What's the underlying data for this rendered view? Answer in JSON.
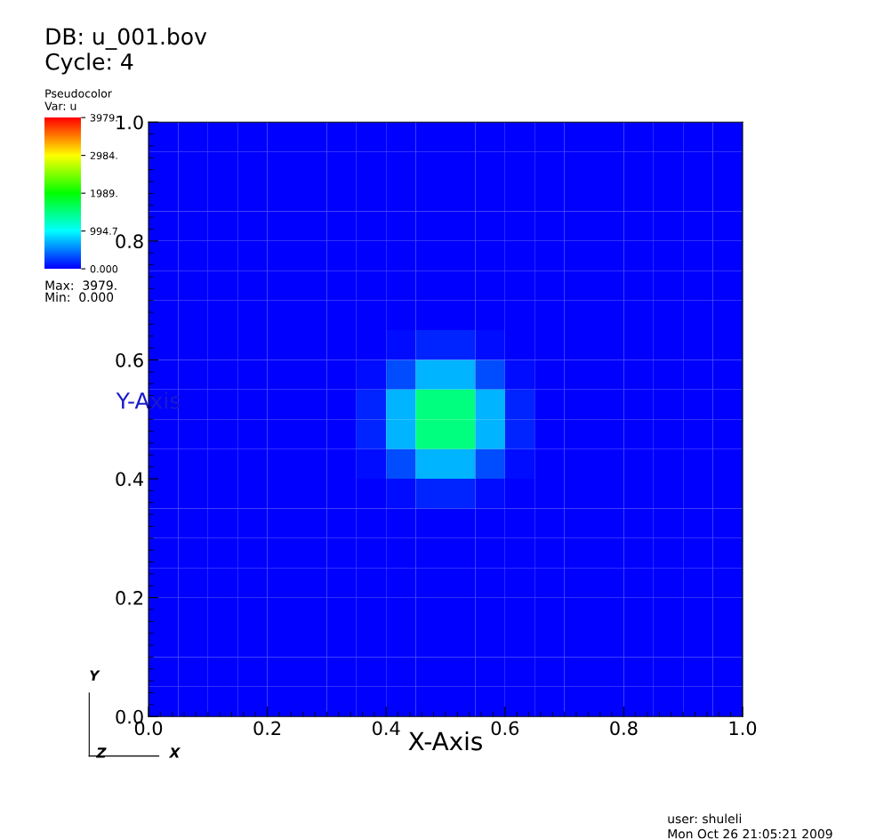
{
  "chart_data": {
    "type": "heatmap",
    "title": "DB: u_001.bov",
    "subtitle": "Cycle: 4",
    "xlabel": "X-Axis",
    "ylabel": "Y-Axis",
    "legend_title": "Pseudocolor",
    "clabel": "Var: u",
    "xlim": [
      0,
      1
    ],
    "ylim": [
      0,
      1
    ],
    "xticks": [
      {
        "value": 0,
        "label": "0.0"
      },
      {
        "value": 0.2,
        "label": "0.2"
      },
      {
        "value": 0.4,
        "label": "0.4"
      },
      {
        "value": 0.6,
        "label": "0.6"
      },
      {
        "value": 0.8,
        "label": "0.8"
      },
      {
        "value": 1,
        "label": "1.0"
      }
    ],
    "yticks": [
      {
        "value": 0,
        "label": "0.0"
      },
      {
        "value": 0.2,
        "label": "0.2"
      },
      {
        "value": 0.4,
        "label": "0.4"
      },
      {
        "value": 0.6,
        "label": "0.6"
      },
      {
        "value": 0.8,
        "label": "0.8"
      },
      {
        "value": 1,
        "label": "1.0"
      }
    ],
    "clim": [
      0,
      3979
    ],
    "cticks": [
      {
        "value": 0,
        "label": "0.000"
      },
      {
        "value": 994.7,
        "label": "994.7"
      },
      {
        "value": 1989,
        "label": "1989."
      },
      {
        "value": 2984,
        "label": "2984."
      },
      {
        "value": 3979,
        "label": "3979."
      }
    ],
    "cells": [
      [
        0,
        0,
        0,
        0,
        0,
        0,
        0,
        0,
        0,
        0,
        0,
        0,
        0,
        0,
        0,
        0,
        0,
        0,
        0,
        0
      ],
      [
        0,
        0,
        0,
        0,
        0,
        0,
        0,
        0,
        0,
        0,
        0,
        0,
        0,
        0,
        0,
        0,
        0,
        0,
        0,
        0
      ],
      [
        0,
        0,
        0,
        0,
        0,
        0,
        0,
        0,
        0,
        0,
        0,
        0,
        0,
        0,
        0,
        0,
        0,
        0,
        0,
        0
      ],
      [
        0,
        0,
        0,
        0,
        0,
        0,
        0,
        0,
        0,
        0,
        0,
        0,
        0,
        0,
        0,
        0,
        0,
        0,
        0,
        0
      ],
      [
        0,
        0,
        0,
        0,
        0,
        0,
        0,
        0,
        0,
        0,
        0,
        0,
        0,
        0,
        0,
        0,
        0,
        0,
        0,
        0
      ],
      [
        0,
        0,
        0,
        0,
        0,
        0,
        0,
        0,
        0,
        0,
        0,
        0,
        0,
        0,
        0,
        0,
        0,
        0,
        0,
        0
      ],
      [
        0,
        0,
        0,
        0,
        0,
        0,
        0,
        0,
        0,
        0,
        0,
        0,
        0,
        0,
        0,
        0,
        0,
        0,
        0,
        0
      ],
      [
        0,
        0,
        0,
        0,
        0,
        0,
        0,
        15,
        60,
        150,
        150,
        60,
        15,
        0,
        0,
        0,
        0,
        0,
        0,
        0
      ],
      [
        0,
        0,
        0,
        0,
        0,
        0,
        0,
        60,
        300,
        700,
        700,
        300,
        60,
        0,
        0,
        0,
        0,
        0,
        0,
        0
      ],
      [
        0,
        0,
        0,
        0,
        0,
        0,
        0,
        150,
        700,
        1500,
        1500,
        700,
        150,
        0,
        0,
        0,
        0,
        0,
        0,
        0
      ],
      [
        0,
        0,
        0,
        0,
        0,
        0,
        0,
        150,
        700,
        1500,
        1500,
        700,
        150,
        0,
        0,
        0,
        0,
        0,
        0,
        0
      ],
      [
        0,
        0,
        0,
        0,
        0,
        0,
        0,
        60,
        300,
        700,
        700,
        300,
        60,
        0,
        0,
        0,
        0,
        0,
        0,
        0
      ],
      [
        0,
        0,
        0,
        0,
        0,
        0,
        0,
        15,
        60,
        150,
        150,
        60,
        15,
        0,
        0,
        0,
        0,
        0,
        0,
        0
      ],
      [
        0,
        0,
        0,
        0,
        0,
        0,
        0,
        0,
        0,
        0,
        0,
        0,
        0,
        0,
        0,
        0,
        0,
        0,
        0,
        0
      ],
      [
        0,
        0,
        0,
        0,
        0,
        0,
        0,
        0,
        0,
        0,
        0,
        0,
        0,
        0,
        0,
        0,
        0,
        0,
        0,
        0
      ],
      [
        0,
        0,
        0,
        0,
        0,
        0,
        0,
        0,
        0,
        0,
        0,
        0,
        0,
        0,
        0,
        0,
        0,
        0,
        0,
        0
      ],
      [
        0,
        0,
        0,
        0,
        0,
        0,
        0,
        0,
        0,
        0,
        0,
        0,
        0,
        0,
        0,
        0,
        0,
        0,
        0,
        0
      ],
      [
        0,
        0,
        0,
        0,
        0,
        0,
        0,
        0,
        0,
        0,
        0,
        0,
        0,
        0,
        0,
        0,
        0,
        0,
        0,
        0
      ],
      [
        0,
        0,
        0,
        0,
        0,
        0,
        0,
        0,
        0,
        0,
        0,
        0,
        0,
        0,
        0,
        0,
        0,
        0,
        0,
        0
      ],
      [
        0,
        0,
        0,
        0,
        0,
        0,
        0,
        0,
        0,
        0,
        0,
        0,
        0,
        0,
        0,
        0,
        0,
        0,
        0,
        0
      ]
    ],
    "annotations": [
      "Max:  3979.",
      "Min:  0.000",
      "user: shuleli",
      "Mon Oct 26 21:05:21 2009",
      "Y",
      "Z",
      "X"
    ]
  }
}
